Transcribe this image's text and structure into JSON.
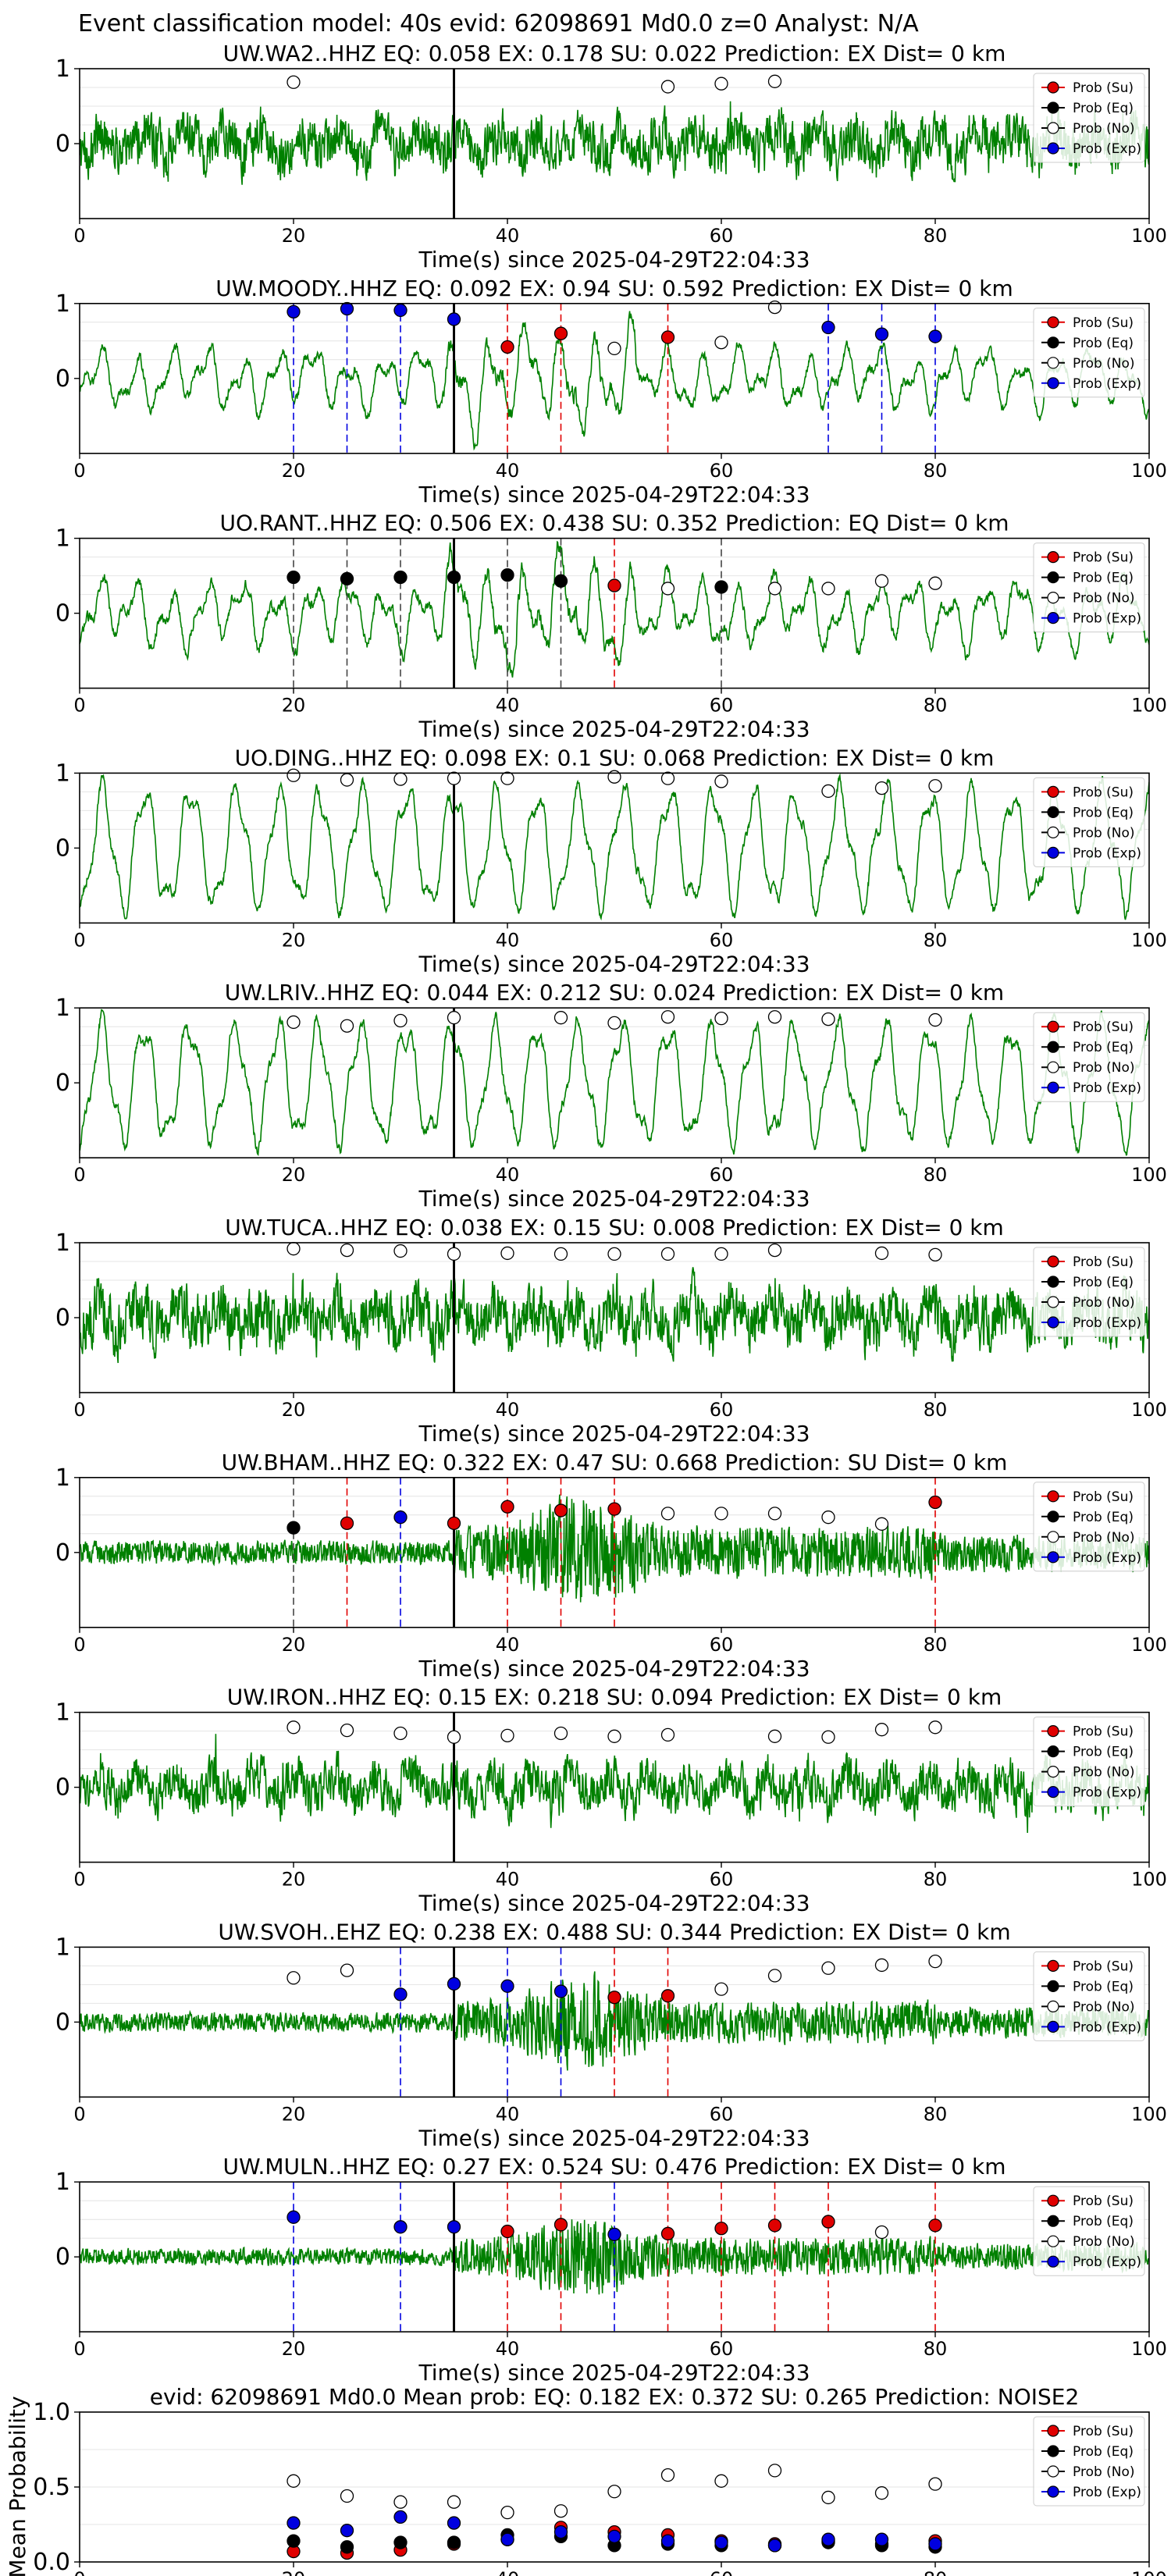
{
  "figure_title": "Event classification model: 40s evid: 62098691 Md0.0 z=0 Analyst: N/A",
  "x_axis_label": "Time(s) since 2025-04-29T22:04:33",
  "x_ticks": [
    "0",
    "20",
    "40",
    "60",
    "80",
    "100"
  ],
  "legend_labels": [
    "Prob (Su)",
    "Prob (Eq)",
    "Prob (No)",
    "Prob (Exp)"
  ],
  "colors": {
    "Su": "#e00000",
    "Eq": "#000000",
    "No": "#ffffff",
    "Exp": "#0000e0",
    "trace": "#008000",
    "marker_line": "#000000"
  },
  "chart_data": [
    {
      "type": "scatter",
      "title": "UW.WA2..HHZ   EQ: 0.058  EX: 0.178  SU: 0.022   Prediction: EX    Dist= 0 km",
      "xlim": [
        0,
        100
      ],
      "ylim": [
        -1,
        1
      ],
      "yticks": [
        "1",
        "0"
      ],
      "style": "noisy",
      "amp": 0.55,
      "event_time": 35,
      "points": [
        {
          "x": 20,
          "y": 0.82,
          "cls": "No"
        },
        {
          "x": 55,
          "y": 0.76,
          "cls": "No"
        },
        {
          "x": 60,
          "y": 0.8,
          "cls": "No"
        },
        {
          "x": 65,
          "y": 0.83,
          "cls": "No"
        }
      ]
    },
    {
      "type": "scatter",
      "title": "UW.MOODY..HHZ   EQ: 0.092  EX: 0.94  SU: 0.592   Prediction: EX    Dist= 0 km",
      "xlim": [
        0,
        100
      ],
      "ylim": [
        -1,
        1
      ],
      "yticks": [
        "1",
        "0"
      ],
      "style": "wavy",
      "amp": 0.45,
      "event_time": 35,
      "points": [
        {
          "x": 20,
          "y": 0.89,
          "cls": "Exp"
        },
        {
          "x": 25,
          "y": 0.93,
          "cls": "Exp"
        },
        {
          "x": 30,
          "y": 0.91,
          "cls": "Exp"
        },
        {
          "x": 35,
          "y": 0.79,
          "cls": "Exp"
        },
        {
          "x": 40,
          "y": 0.42,
          "cls": "Su"
        },
        {
          "x": 45,
          "y": 0.6,
          "cls": "Su"
        },
        {
          "x": 50,
          "y": 0.4,
          "cls": "No"
        },
        {
          "x": 55,
          "y": 0.55,
          "cls": "Su"
        },
        {
          "x": 60,
          "y": 0.48,
          "cls": "No"
        },
        {
          "x": 65,
          "y": 0.95,
          "cls": "No"
        },
        {
          "x": 70,
          "y": 0.68,
          "cls": "Exp"
        },
        {
          "x": 75,
          "y": 0.59,
          "cls": "Exp"
        },
        {
          "x": 80,
          "y": 0.56,
          "cls": "Exp"
        }
      ]
    },
    {
      "type": "scatter",
      "title": "UO.RANT..HHZ   EQ: 0.506  EX: 0.438  SU: 0.352   Prediction: EQ    Dist= 0 km",
      "xlim": [
        0,
        100
      ],
      "ylim": [
        -1,
        1
      ],
      "yticks": [
        "1",
        "0"
      ],
      "style": "wavy",
      "amp": 0.5,
      "event_time": 35,
      "points": [
        {
          "x": 20,
          "y": 0.48,
          "cls": "Eq"
        },
        {
          "x": 25,
          "y": 0.46,
          "cls": "Eq"
        },
        {
          "x": 30,
          "y": 0.48,
          "cls": "Eq"
        },
        {
          "x": 35,
          "y": 0.48,
          "cls": "Eq"
        },
        {
          "x": 40,
          "y": 0.51,
          "cls": "Eq"
        },
        {
          "x": 45,
          "y": 0.43,
          "cls": "Eq"
        },
        {
          "x": 50,
          "y": 0.37,
          "cls": "Su"
        },
        {
          "x": 55,
          "y": 0.33,
          "cls": "No"
        },
        {
          "x": 60,
          "y": 0.35,
          "cls": "Eq"
        },
        {
          "x": 65,
          "y": 0.33,
          "cls": "No"
        },
        {
          "x": 70,
          "y": 0.33,
          "cls": "No"
        },
        {
          "x": 75,
          "y": 0.43,
          "cls": "No"
        },
        {
          "x": 80,
          "y": 0.4,
          "cls": "No"
        }
      ]
    },
    {
      "type": "scatter",
      "title": "UO.DING..HHZ   EQ: 0.098  EX: 0.1  SU: 0.068   Prediction: EX    Dist= 0 km",
      "xlim": [
        0,
        100
      ],
      "ylim": [
        -1,
        1
      ],
      "yticks": [
        "1",
        "0"
      ],
      "style": "oscill",
      "amp": 0.75,
      "event_time": 35,
      "points": [
        {
          "x": 20,
          "y": 0.97,
          "cls": "No"
        },
        {
          "x": 25,
          "y": 0.91,
          "cls": "No"
        },
        {
          "x": 30,
          "y": 0.92,
          "cls": "No"
        },
        {
          "x": 35,
          "y": 0.93,
          "cls": "No"
        },
        {
          "x": 40,
          "y": 0.93,
          "cls": "No"
        },
        {
          "x": 50,
          "y": 0.95,
          "cls": "No"
        },
        {
          "x": 55,
          "y": 0.93,
          "cls": "No"
        },
        {
          "x": 60,
          "y": 0.89,
          "cls": "No"
        },
        {
          "x": 70,
          "y": 0.76,
          "cls": "No"
        },
        {
          "x": 75,
          "y": 0.8,
          "cls": "No"
        },
        {
          "x": 80,
          "y": 0.83,
          "cls": "No"
        }
      ]
    },
    {
      "type": "scatter",
      "title": "UW.LRIV..HHZ   EQ: 0.044  EX: 0.212  SU: 0.024   Prediction: EX    Dist= 0 km",
      "xlim": [
        0,
        100
      ],
      "ylim": [
        -1,
        1
      ],
      "yticks": [
        "1",
        "0"
      ],
      "style": "oscill",
      "amp": 0.75,
      "event_time": 35,
      "points": [
        {
          "x": 20,
          "y": 0.81,
          "cls": "No"
        },
        {
          "x": 25,
          "y": 0.76,
          "cls": "No"
        },
        {
          "x": 30,
          "y": 0.83,
          "cls": "No"
        },
        {
          "x": 35,
          "y": 0.87,
          "cls": "No"
        },
        {
          "x": 45,
          "y": 0.87,
          "cls": "No"
        },
        {
          "x": 50,
          "y": 0.8,
          "cls": "No"
        },
        {
          "x": 55,
          "y": 0.88,
          "cls": "No"
        },
        {
          "x": 60,
          "y": 0.86,
          "cls": "No"
        },
        {
          "x": 65,
          "y": 0.88,
          "cls": "No"
        },
        {
          "x": 70,
          "y": 0.85,
          "cls": "No"
        },
        {
          "x": 80,
          "y": 0.84,
          "cls": "No"
        }
      ]
    },
    {
      "type": "scatter",
      "title": "UW.TUCA..HHZ   EQ: 0.038  EX: 0.15  SU: 0.008   Prediction: EX    Dist= 0 km",
      "xlim": [
        0,
        100
      ],
      "ylim": [
        -1,
        1
      ],
      "yticks": [
        "1",
        "0"
      ],
      "style": "noisy",
      "amp": 0.6,
      "event_time": 35,
      "points": [
        {
          "x": 20,
          "y": 0.92,
          "cls": "No"
        },
        {
          "x": 25,
          "y": 0.9,
          "cls": "No"
        },
        {
          "x": 30,
          "y": 0.89,
          "cls": "No"
        },
        {
          "x": 35,
          "y": 0.85,
          "cls": "No"
        },
        {
          "x": 40,
          "y": 0.86,
          "cls": "No"
        },
        {
          "x": 45,
          "y": 0.85,
          "cls": "No"
        },
        {
          "x": 50,
          "y": 0.85,
          "cls": "No"
        },
        {
          "x": 55,
          "y": 0.85,
          "cls": "No"
        },
        {
          "x": 60,
          "y": 0.85,
          "cls": "No"
        },
        {
          "x": 65,
          "y": 0.9,
          "cls": "No"
        },
        {
          "x": 75,
          "y": 0.86,
          "cls": "No"
        },
        {
          "x": 80,
          "y": 0.84,
          "cls": "No"
        }
      ]
    },
    {
      "type": "scatter",
      "title": "UW.BHAM..HHZ   EQ: 0.322  EX: 0.47  SU: 0.668   Prediction: SU    Dist= 0 km",
      "xlim": [
        0,
        100
      ],
      "ylim": [
        -1,
        1
      ],
      "yticks": [
        "1",
        "0"
      ],
      "style": "burst",
      "amp": 0.55,
      "event_time": 35,
      "points": [
        {
          "x": 20,
          "y": 0.33,
          "cls": "Eq"
        },
        {
          "x": 25,
          "y": 0.39,
          "cls": "Su"
        },
        {
          "x": 30,
          "y": 0.47,
          "cls": "Exp"
        },
        {
          "x": 35,
          "y": 0.39,
          "cls": "Su"
        },
        {
          "x": 40,
          "y": 0.61,
          "cls": "Su"
        },
        {
          "x": 45,
          "y": 0.56,
          "cls": "Su"
        },
        {
          "x": 50,
          "y": 0.58,
          "cls": "Su"
        },
        {
          "x": 55,
          "y": 0.52,
          "cls": "No"
        },
        {
          "x": 60,
          "y": 0.52,
          "cls": "No"
        },
        {
          "x": 65,
          "y": 0.52,
          "cls": "No"
        },
        {
          "x": 70,
          "y": 0.47,
          "cls": "No"
        },
        {
          "x": 75,
          "y": 0.38,
          "cls": "No"
        },
        {
          "x": 80,
          "y": 0.67,
          "cls": "Su"
        }
      ]
    },
    {
      "type": "scatter",
      "title": "UW.IRON..HHZ   EQ: 0.15  EX: 0.218  SU: 0.094   Prediction: EX    Dist= 0 km",
      "xlim": [
        0,
        100
      ],
      "ylim": [
        -1,
        1
      ],
      "yticks": [
        "1",
        "0"
      ],
      "style": "noisy",
      "amp": 0.5,
      "event_time": 35,
      "points": [
        {
          "x": 20,
          "y": 0.8,
          "cls": "No"
        },
        {
          "x": 25,
          "y": 0.76,
          "cls": "No"
        },
        {
          "x": 30,
          "y": 0.72,
          "cls": "No"
        },
        {
          "x": 35,
          "y": 0.67,
          "cls": "No"
        },
        {
          "x": 40,
          "y": 0.69,
          "cls": "No"
        },
        {
          "x": 45,
          "y": 0.72,
          "cls": "No"
        },
        {
          "x": 50,
          "y": 0.68,
          "cls": "No"
        },
        {
          "x": 55,
          "y": 0.7,
          "cls": "No"
        },
        {
          "x": 65,
          "y": 0.68,
          "cls": "No"
        },
        {
          "x": 70,
          "y": 0.67,
          "cls": "No"
        },
        {
          "x": 75,
          "y": 0.77,
          "cls": "No"
        },
        {
          "x": 80,
          "y": 0.8,
          "cls": "No"
        }
      ]
    },
    {
      "type": "scatter",
      "title": "UW.SVOH..EHZ   EQ: 0.238  EX: 0.488  SU: 0.344   Prediction: EX    Dist= 0 km",
      "xlim": [
        0,
        100
      ],
      "ylim": [
        -1,
        1
      ],
      "yticks": [
        "1",
        "0"
      ],
      "style": "burst",
      "amp": 0.45,
      "event_time": 35,
      "points": [
        {
          "x": 20,
          "y": 0.59,
          "cls": "No"
        },
        {
          "x": 25,
          "y": 0.69,
          "cls": "No"
        },
        {
          "x": 30,
          "y": 0.37,
          "cls": "Exp"
        },
        {
          "x": 35,
          "y": 0.51,
          "cls": "Exp"
        },
        {
          "x": 40,
          "y": 0.48,
          "cls": "Exp"
        },
        {
          "x": 45,
          "y": 0.41,
          "cls": "Exp"
        },
        {
          "x": 50,
          "y": 0.33,
          "cls": "Su"
        },
        {
          "x": 55,
          "y": 0.35,
          "cls": "Su"
        },
        {
          "x": 60,
          "y": 0.44,
          "cls": "No"
        },
        {
          "x": 65,
          "y": 0.62,
          "cls": "No"
        },
        {
          "x": 70,
          "y": 0.72,
          "cls": "No"
        },
        {
          "x": 75,
          "y": 0.76,
          "cls": "No"
        },
        {
          "x": 80,
          "y": 0.81,
          "cls": "No"
        }
      ]
    },
    {
      "type": "scatter",
      "title": "UW.MULN..HHZ   EQ: 0.27  EX: 0.524  SU: 0.476   Prediction: EX    Dist= 0 km",
      "xlim": [
        0,
        100
      ],
      "ylim": [
        -1,
        1
      ],
      "yticks": [
        "1",
        "0"
      ],
      "style": "burst",
      "amp": 0.4,
      "event_time": 35,
      "points": [
        {
          "x": 20,
          "y": 0.53,
          "cls": "Exp"
        },
        {
          "x": 30,
          "y": 0.4,
          "cls": "Exp"
        },
        {
          "x": 35,
          "y": 0.4,
          "cls": "Exp"
        },
        {
          "x": 40,
          "y": 0.34,
          "cls": "Su"
        },
        {
          "x": 45,
          "y": 0.43,
          "cls": "Su"
        },
        {
          "x": 50,
          "y": 0.3,
          "cls": "Exp"
        },
        {
          "x": 55,
          "y": 0.31,
          "cls": "Su"
        },
        {
          "x": 60,
          "y": 0.38,
          "cls": "Su"
        },
        {
          "x": 65,
          "y": 0.42,
          "cls": "Su"
        },
        {
          "x": 70,
          "y": 0.47,
          "cls": "Su"
        },
        {
          "x": 75,
          "y": 0.33,
          "cls": "No"
        },
        {
          "x": 80,
          "y": 0.42,
          "cls": "Su"
        }
      ]
    },
    {
      "type": "scatter",
      "title": "evid: 62098691  Md0.0   Mean prob:   EQ: 0.182  EX: 0.372  SU: 0.265   Prediction: NOISE2",
      "ylabel": "Mean Probability",
      "xlim": [
        0,
        100
      ],
      "ylim": [
        0,
        1
      ],
      "yticks": [
        "1.0",
        "0.5",
        "0.0"
      ],
      "style": "none",
      "series": [
        {
          "name": "Prob (Su)",
          "cls": "Su",
          "x": [
            20,
            25,
            30,
            35,
            40,
            45,
            50,
            55,
            60,
            65,
            70,
            75,
            80
          ],
          "y": [
            0.07,
            0.06,
            0.08,
            0.12,
            0.15,
            0.23,
            0.2,
            0.18,
            0.14,
            0.12,
            0.14,
            0.12,
            0.14
          ]
        },
        {
          "name": "Prob (Eq)",
          "cls": "Eq",
          "x": [
            20,
            25,
            30,
            35,
            40,
            45,
            50,
            55,
            60,
            65,
            70,
            75,
            80
          ],
          "y": [
            0.14,
            0.1,
            0.13,
            0.13,
            0.18,
            0.17,
            0.11,
            0.12,
            0.11,
            0.11,
            0.13,
            0.11,
            0.1
          ]
        },
        {
          "name": "Prob (No)",
          "cls": "No",
          "x": [
            20,
            25,
            30,
            35,
            40,
            45,
            50,
            55,
            60,
            65,
            70,
            75,
            80
          ],
          "y": [
            0.54,
            0.44,
            0.4,
            0.4,
            0.33,
            0.34,
            0.47,
            0.58,
            0.54,
            0.61,
            0.43,
            0.46,
            0.52
          ]
        },
        {
          "name": "Prob (Exp)",
          "cls": "Exp",
          "x": [
            20,
            25,
            30,
            35,
            40,
            45,
            50,
            55,
            60,
            65,
            70,
            75,
            80
          ],
          "y": [
            0.26,
            0.21,
            0.3,
            0.26,
            0.15,
            0.2,
            0.17,
            0.14,
            0.13,
            0.11,
            0.15,
            0.15,
            0.12
          ]
        }
      ]
    }
  ]
}
